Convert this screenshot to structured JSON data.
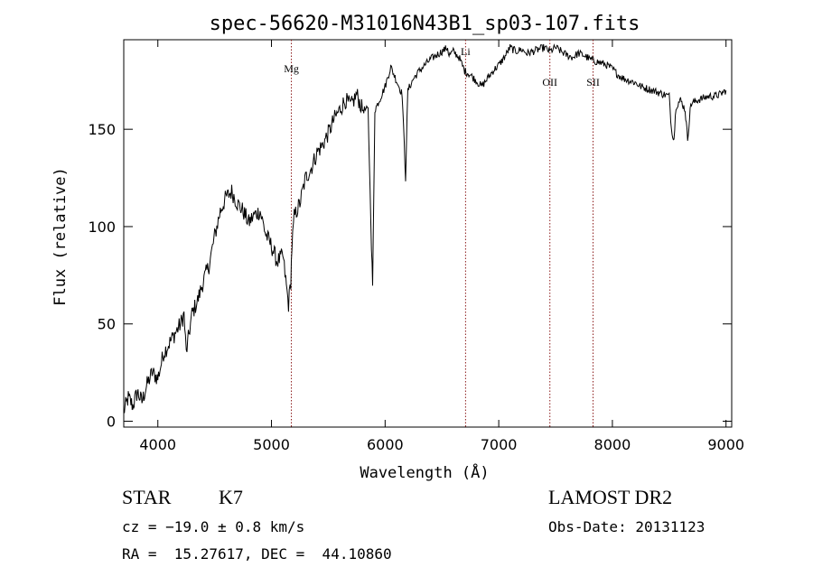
{
  "chart_data": {
    "type": "line",
    "title": "spec-56620-M31016N43B1_sp03-107.fits",
    "xlabel": "Wavelength (Å)",
    "ylabel": "Flux (relative)",
    "xlim": [
      3700,
      9050
    ],
    "ylim": [
      -3,
      196
    ],
    "xticks": [
      4000,
      5000,
      6000,
      7000,
      8000,
      9000
    ],
    "yticks": [
      0,
      50,
      100,
      150
    ],
    "grid": false,
    "line_color": "#000000",
    "marker_color": "#8b1a1a",
    "series": [
      {
        "x": [
          3700,
          3740,
          3780,
          3820,
          3860,
          3900,
          3950,
          4000,
          4050,
          4100,
          4150,
          4200,
          4230,
          4250,
          4300,
          4350,
          4400,
          4450,
          4500,
          4550,
          4600,
          4650,
          4700,
          4750,
          4800,
          4850,
          4900,
          4950,
          5000,
          5050,
          5100,
          5150,
          5170,
          5180,
          5200,
          5250,
          5300,
          5350,
          5400,
          5450,
          5500,
          5550,
          5600,
          5650,
          5700,
          5750,
          5800,
          5850,
          5880,
          5890,
          5896,
          5910,
          5950,
          6000,
          6050,
          6100,
          6150,
          6180,
          6200,
          6250,
          6300,
          6350,
          6400,
          6450,
          6500,
          6550,
          6563,
          6600,
          6650,
          6700,
          6750,
          6800,
          6850,
          6900,
          6950,
          7000,
          7050,
          7100,
          7150,
          7200,
          7250,
          7300,
          7350,
          7400,
          7450,
          7500,
          7550,
          7600,
          7650,
          7700,
          7750,
          7800,
          7850,
          7900,
          7950,
          8000,
          8050,
          8100,
          8150,
          8200,
          8250,
          8300,
          8350,
          8400,
          8450,
          8500,
          8520,
          8542,
          8560,
          8600,
          8640,
          8662,
          8690,
          8720,
          8750,
          8800,
          8850,
          8900,
          8950,
          9000
        ],
        "y": [
          5,
          12,
          8,
          15,
          10,
          18,
          25,
          22,
          35,
          40,
          45,
          50,
          55,
          35,
          55,
          62,
          72,
          80,
          95,
          108,
          115,
          118,
          112,
          108,
          102,
          106,
          108,
          96,
          90,
          82,
          85,
          60,
          72,
          90,
          105,
          112,
          125,
          130,
          138,
          142,
          148,
          155,
          160,
          165,
          162,
          168,
          160,
          160,
          90,
          70,
          95,
          160,
          165,
          172,
          182,
          175,
          168,
          125,
          170,
          176,
          180,
          183,
          186,
          188,
          190,
          192,
          188,
          190,
          187,
          180,
          178,
          175,
          172,
          176,
          180,
          183,
          187,
          192,
          190,
          191,
          189,
          190,
          191,
          192,
          190,
          192,
          190,
          188,
          187,
          189,
          188,
          186,
          185,
          184,
          183,
          181,
          178,
          176,
          175,
          174,
          172,
          171,
          170,
          169,
          168,
          167,
          150,
          145,
          162,
          165,
          160,
          145,
          163,
          164,
          165,
          166,
          167,
          167,
          168,
          170
        ]
      }
    ],
    "lines": [
      {
        "label": "Mg",
        "x": 5175
      },
      {
        "label": "Li",
        "x": 6708
      },
      {
        "label": "OII",
        "x": 7450
      },
      {
        "label": "SII",
        "x": 7830
      }
    ]
  },
  "info": {
    "class": "STAR",
    "subclass": "K7",
    "cz": "cz = −19.0 ± 0.8 km/s",
    "coords": "RA =  15.27617, DEC =  44.10860",
    "survey": "LAMOST DR2",
    "obsdate": "Obs-Date: 20131123"
  }
}
